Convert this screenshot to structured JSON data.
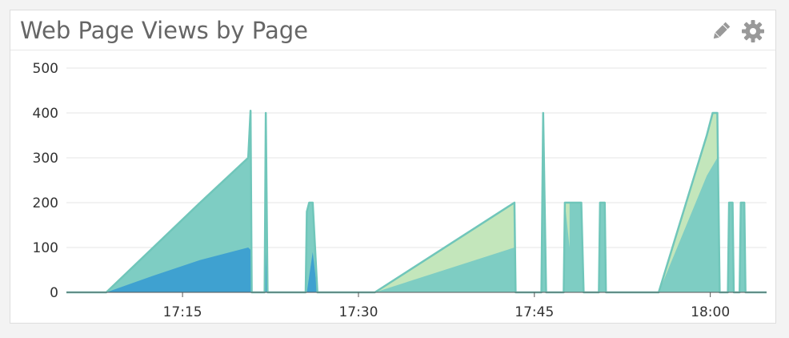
{
  "panel": {
    "title": "Web Page Views by Page",
    "tools": [
      {
        "name": "pencil-icon",
        "label": ""
      },
      {
        "name": "gear-icon",
        "label": ""
      }
    ]
  },
  "colors": {
    "grid": "#e5e5e5",
    "axis": "#555555",
    "tick_text": "#333333",
    "teal_fill": "#7ecdc3",
    "teal_stroke": "#70c6ba",
    "lightgreen_fill": "#c3e6bb",
    "blue_fill": "#3fa1d0",
    "icon": "#999999"
  },
  "chart_data": {
    "type": "area",
    "title": "Web Page Views by Page",
    "xlabel": "",
    "ylabel": "",
    "ylim": [
      0,
      500
    ],
    "yticks": [
      0,
      100,
      200,
      300,
      400,
      500
    ],
    "xticks": [
      "17:15",
      "17:30",
      "17:45",
      "18:00"
    ],
    "xtick_minutes": [
      15,
      30,
      45,
      60
    ],
    "xlim_minutes": [
      5.1,
      64.8
    ],
    "x_unit": "minutes past 17:00",
    "grid": true,
    "legend": "none",
    "series": [
      {
        "color": "#3fa1d0",
        "points": [
          [
            5.1,
            0
          ],
          [
            8.3,
            0
          ],
          [
            8.5,
            0
          ],
          [
            12.5,
            37
          ],
          [
            16.5,
            72
          ],
          [
            20.6,
            100
          ],
          [
            20.8,
            95
          ],
          [
            20.9,
            0
          ],
          [
            22.0,
            0
          ],
          [
            22.1,
            90
          ],
          [
            22.25,
            0
          ],
          [
            23.0,
            0
          ],
          [
            24.5,
            0
          ],
          [
            25.5,
            0
          ],
          [
            25.6,
            0
          ],
          [
            26.1,
            90
          ],
          [
            26.5,
            0
          ],
          [
            27.0,
            0
          ],
          [
            64.8,
            0
          ]
        ]
      },
      {
        "color": "#7ecdc3",
        "points": [
          [
            5.1,
            0
          ],
          [
            8.3,
            0
          ],
          [
            8.5,
            0
          ],
          [
            12.5,
            32
          ],
          [
            16.5,
            62
          ],
          [
            20.6,
            95
          ],
          [
            20.8,
            89
          ],
          [
            20.9,
            0
          ],
          [
            22.0,
            0
          ],
          [
            22.1,
            310
          ],
          [
            22.25,
            0
          ],
          [
            23.0,
            0
          ],
          [
            24.5,
            0
          ],
          [
            25.5,
            0
          ],
          [
            25.6,
            180
          ],
          [
            26.1,
            110
          ],
          [
            26.5,
            0
          ],
          [
            27.0,
            0
          ],
          [
            31.2,
            0
          ],
          [
            31.4,
            0
          ],
          [
            43.3,
            100
          ],
          [
            43.4,
            0
          ],
          [
            45.6,
            0
          ],
          [
            45.75,
            400
          ],
          [
            46.0,
            0
          ],
          [
            47.5,
            0
          ],
          [
            47.6,
            200
          ],
          [
            48.0,
            100
          ],
          [
            49.0,
            200
          ],
          [
            49.2,
            0
          ],
          [
            50.5,
            0
          ],
          [
            50.6,
            200
          ],
          [
            51.0,
            200
          ],
          [
            51.1,
            0
          ],
          [
            55.5,
            0
          ],
          [
            55.6,
            0
          ],
          [
            59.7,
            260
          ],
          [
            60.6,
            300
          ],
          [
            60.8,
            0
          ],
          [
            61.5,
            0
          ],
          [
            61.6,
            200
          ],
          [
            61.9,
            200
          ],
          [
            62.0,
            0
          ],
          [
            62.5,
            0
          ],
          [
            62.6,
            200
          ],
          [
            62.9,
            200
          ],
          [
            63.0,
            0
          ],
          [
            64.8,
            0
          ]
        ]
      },
      {
        "color": "#c3e6bb",
        "points": [
          [
            5.1,
            0
          ],
          [
            31.4,
            0
          ],
          [
            43.3,
            100
          ],
          [
            43.4,
            0
          ],
          [
            47.5,
            0
          ],
          [
            47.6,
            0
          ],
          [
            48.0,
            100
          ],
          [
            49.2,
            0
          ],
          [
            55.6,
            0
          ],
          [
            59.7,
            90
          ],
          [
            60.6,
            100
          ],
          [
            60.8,
            0
          ],
          [
            64.8,
            0
          ]
        ]
      }
    ],
    "total_outline": [
      [
        5.1,
        0
      ],
      [
        8.3,
        0
      ],
      [
        8.5,
        0
      ],
      [
        12.5,
        100
      ],
      [
        16.5,
        200
      ],
      [
        20.6,
        300
      ],
      [
        20.8,
        405
      ],
      [
        20.9,
        0
      ],
      [
        22.0,
        0
      ],
      [
        22.1,
        400
      ],
      [
        22.25,
        0
      ],
      [
        23.0,
        0
      ],
      [
        24.5,
        0
      ],
      [
        25.5,
        0
      ],
      [
        25.6,
        180
      ],
      [
        25.8,
        200
      ],
      [
        26.1,
        200
      ],
      [
        26.5,
        0
      ],
      [
        27.0,
        0
      ],
      [
        31.2,
        0
      ],
      [
        31.4,
        0
      ],
      [
        43.3,
        200
      ],
      [
        43.4,
        0
      ],
      [
        45.6,
        0
      ],
      [
        45.75,
        400
      ],
      [
        46.0,
        0
      ],
      [
        47.5,
        0
      ],
      [
        47.6,
        200
      ],
      [
        48.0,
        200
      ],
      [
        49.0,
        200
      ],
      [
        49.2,
        0
      ],
      [
        50.5,
        0
      ],
      [
        50.6,
        200
      ],
      [
        51.0,
        200
      ],
      [
        51.1,
        0
      ],
      [
        55.5,
        0
      ],
      [
        55.6,
        0
      ],
      [
        59.7,
        350
      ],
      [
        60.2,
        400
      ],
      [
        60.6,
        400
      ],
      [
        60.8,
        0
      ],
      [
        61.5,
        0
      ],
      [
        61.6,
        200
      ],
      [
        61.9,
        200
      ],
      [
        62.0,
        0
      ],
      [
        62.5,
        0
      ],
      [
        62.6,
        200
      ],
      [
        62.9,
        200
      ],
      [
        63.0,
        0
      ],
      [
        64.8,
        0
      ]
    ]
  }
}
